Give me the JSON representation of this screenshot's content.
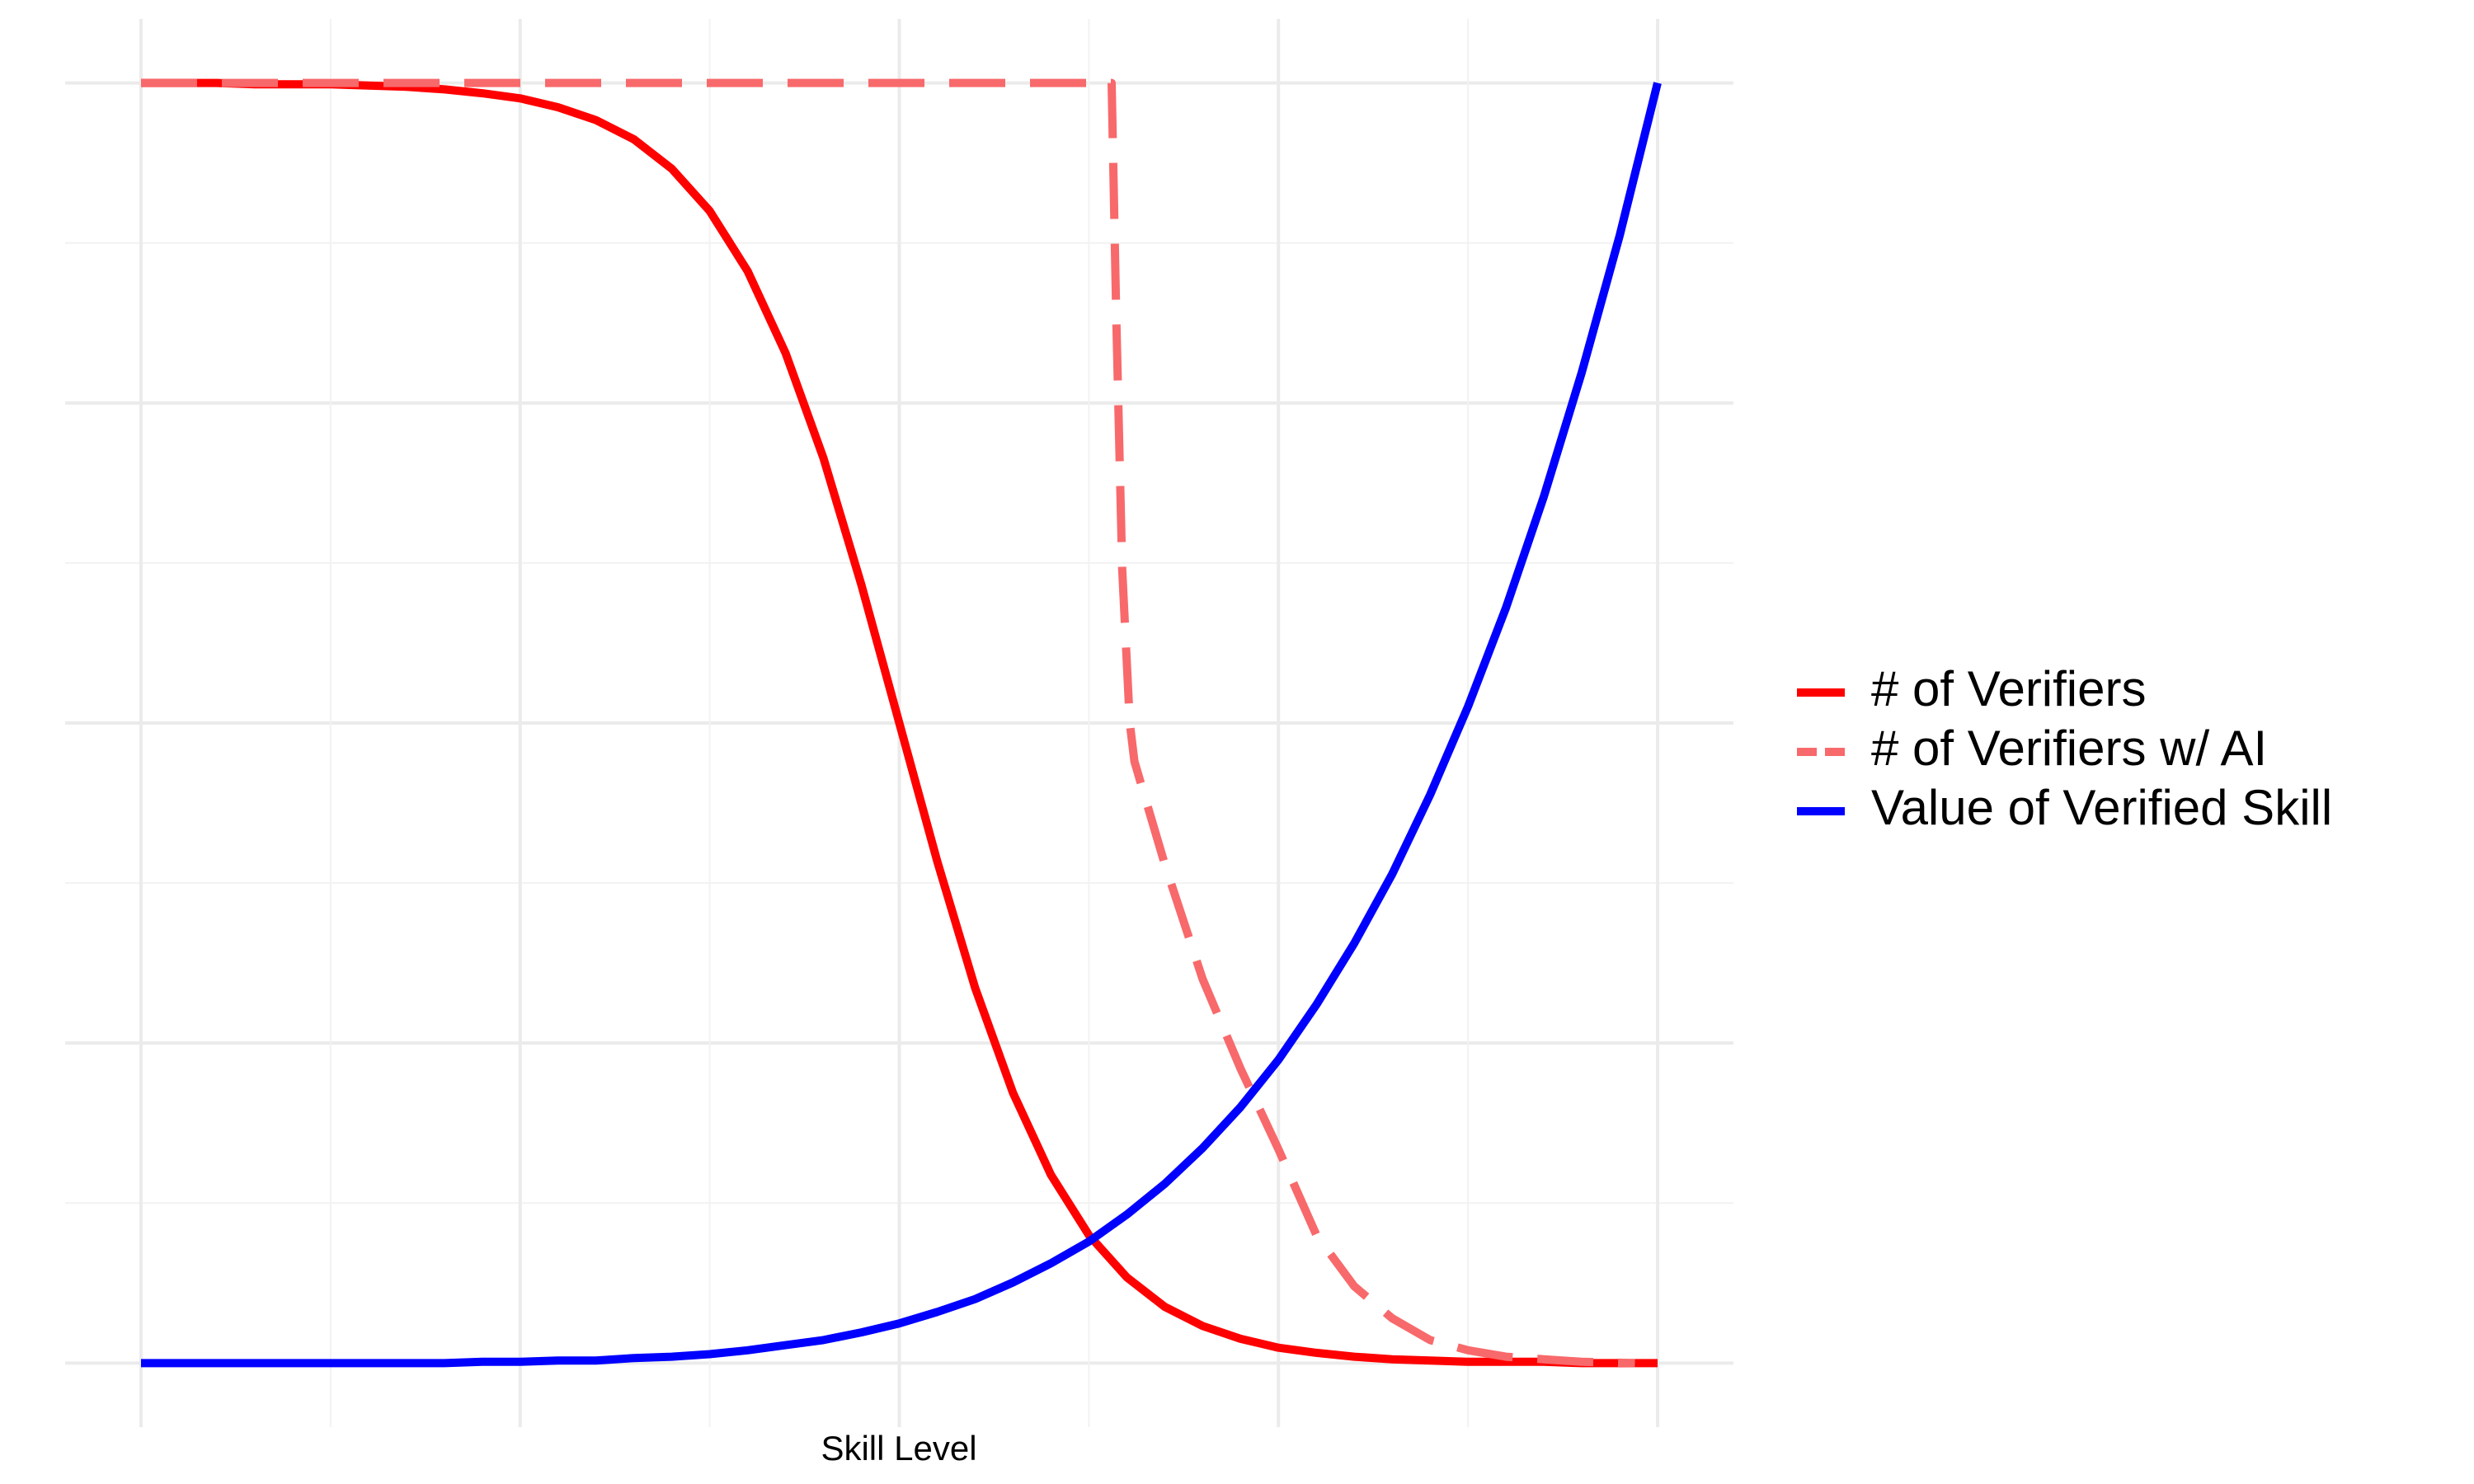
{
  "chart_data": {
    "type": "line",
    "x_label": "Skill Level",
    "xlim": [
      -0.05,
      1.05
    ],
    "ylim": [
      -0.05,
      1.05
    ],
    "xticks": [
      0,
      0.125,
      0.25,
      0.375,
      0.5,
      0.625,
      0.75,
      0.875,
      1
    ],
    "yticks": [
      0,
      0.125,
      0.25,
      0.375,
      0.5,
      0.625,
      0.75,
      0.875,
      1
    ],
    "grid": true,
    "legend": "right",
    "series": [
      {
        "name": "# of Verifiers",
        "color": "#ff0000",
        "linestyle": "solid",
        "x": [
          0,
          0.025,
          0.05,
          0.075,
          0.1,
          0.125,
          0.15,
          0.175,
          0.2,
          0.225,
          0.25,
          0.275,
          0.3,
          0.325,
          0.35,
          0.375,
          0.4,
          0.425,
          0.45,
          0.475,
          0.5,
          0.525,
          0.55,
          0.575,
          0.6,
          0.625,
          0.65,
          0.675,
          0.7,
          0.725,
          0.75,
          0.775,
          0.8,
          0.825,
          0.85,
          0.875,
          0.9,
          0.925,
          0.95,
          0.975,
          1
        ],
        "values": [
          1,
          1,
          1,
          0.999,
          0.999,
          0.999,
          0.998,
          0.997,
          0.995,
          0.992,
          0.988,
          0.981,
          0.971,
          0.956,
          0.933,
          0.9,
          0.853,
          0.789,
          0.707,
          0.608,
          0.5,
          0.392,
          0.293,
          0.211,
          0.147,
          0.1,
          0.067,
          0.044,
          0.029,
          0.019,
          0.012,
          0.008,
          0.005,
          0.003,
          0.002,
          0.001,
          0.001,
          0.001,
          0,
          0,
          0
        ]
      },
      {
        "name": "# of Verifiers w/ AI",
        "color": "#f8696b",
        "linestyle": "dashed",
        "x": [
          0,
          0.64,
          0.643,
          0.647,
          0.652,
          0.655,
          0.675,
          0.7,
          0.725,
          0.75,
          0.775,
          0.8,
          0.825,
          0.85,
          0.875,
          0.9,
          0.925,
          0.95,
          0.985
        ],
        "values": [
          1,
          1,
          0.82,
          0.62,
          0.5,
          0.47,
          0.39,
          0.3,
          0.23,
          0.167,
          0.1,
          0.06,
          0.035,
          0.018,
          0.01,
          0.005,
          0.003,
          0.001,
          0
        ]
      },
      {
        "name": "Value of Verified Skill",
        "color": "#0000ff",
        "linestyle": "solid",
        "x": [
          0,
          0.025,
          0.05,
          0.075,
          0.1,
          0.125,
          0.15,
          0.175,
          0.2,
          0.225,
          0.25,
          0.275,
          0.3,
          0.325,
          0.35,
          0.375,
          0.4,
          0.425,
          0.45,
          0.475,
          0.5,
          0.525,
          0.55,
          0.575,
          0.6,
          0.625,
          0.65,
          0.675,
          0.7,
          0.725,
          0.75,
          0.775,
          0.8,
          0.825,
          0.85,
          0.875,
          0.9,
          0.925,
          0.95,
          0.975,
          1
        ],
        "values": [
          0,
          0,
          0,
          0,
          0,
          0,
          0,
          0,
          0,
          0.001,
          0.001,
          0.002,
          0.002,
          0.004,
          0.005,
          0.007,
          0.01,
          0.014,
          0.018,
          0.024,
          0.031,
          0.04,
          0.05,
          0.063,
          0.078,
          0.095,
          0.116,
          0.14,
          0.168,
          0.2,
          0.237,
          0.28,
          0.328,
          0.382,
          0.444,
          0.513,
          0.59,
          0.677,
          0.774,
          0.881,
          1
        ]
      }
    ]
  }
}
